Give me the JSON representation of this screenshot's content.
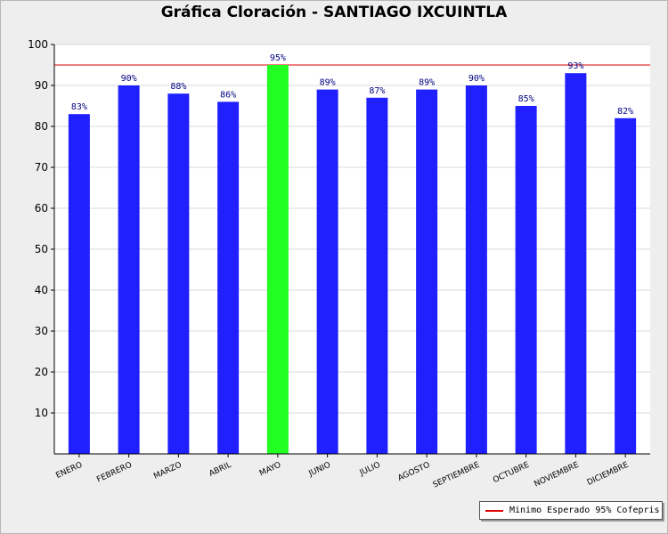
{
  "chart_data": {
    "type": "bar",
    "title": "Gráfica Cloración - SANTIAGO IXCUINTLA",
    "categories": [
      "ENERO",
      "FEBRERO",
      "MARZO",
      "ABRIL",
      "MAYO",
      "JUNIO",
      "JULIO",
      "AGOSTO",
      "SEPTIEMBRE",
      "OCTUBRE",
      "NOVIEMBRE",
      "DICIEMBRE"
    ],
    "values": [
      83,
      90,
      88,
      86,
      95,
      89,
      87,
      89,
      90,
      85,
      93,
      82
    ],
    "data_labels": [
      "83%",
      "90%",
      "88%",
      "86%",
      "95%",
      "89%",
      "87%",
      "89%",
      "90%",
      "85%",
      "93%",
      "82%"
    ],
    "bar_color": "#2020ff",
    "highlight_color": "#22ff22",
    "highlight_index": 4,
    "ylim": [
      0,
      100
    ],
    "yticks": [
      10,
      20,
      30,
      40,
      50,
      60,
      70,
      80,
      90,
      100
    ],
    "grid": true,
    "reference_line": {
      "value": 95,
      "label": "Minimo Esperado 95% Cofepris",
      "color": "#e00000"
    },
    "legend_position": "bottom-right"
  }
}
